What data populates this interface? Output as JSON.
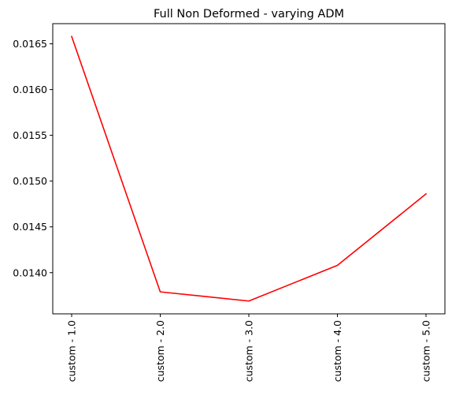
{
  "chart_data": {
    "type": "line",
    "title": "Full Non Deformed - varying ADM",
    "xlabel": "",
    "ylabel": "",
    "categories": [
      "custom - 1.0",
      "custom - 2.0",
      "custom - 3.0",
      "custom - 4.0",
      "custom - 5.0"
    ],
    "series": [
      {
        "values": [
          0.01658,
          0.01379,
          0.01369,
          0.01408,
          0.01486
        ],
        "color": "#ff0000"
      }
    ],
    "ylim": [
      0.01355,
      0.01672
    ],
    "yticks": [
      0.014,
      0.0145,
      0.015,
      0.0155,
      0.016,
      0.0165
    ],
    "ytick_labels": [
      "0.0140",
      "0.0145",
      "0.0150",
      "0.0155",
      "0.0160",
      "0.0165"
    ],
    "grid": false,
    "legend": "none"
  }
}
